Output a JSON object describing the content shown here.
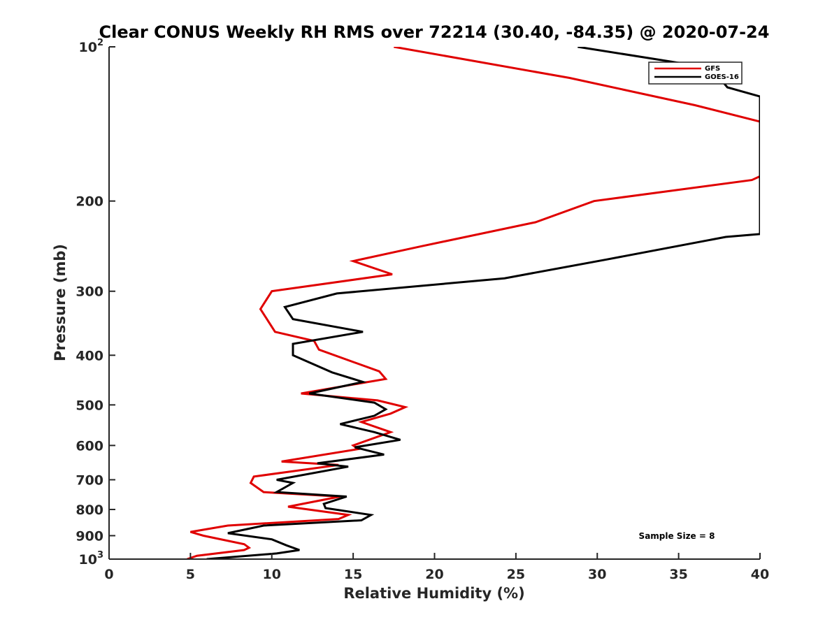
{
  "chart_data": {
    "type": "line",
    "title": "Clear CONUS Weekly RH RMS over 72214 (30.40, -84.35) @ 2020-07-24",
    "xlabel": "Relative Humidity (%)",
    "ylabel": "Pressure (mb)",
    "xlim": [
      0,
      40
    ],
    "ylim": [
      100,
      1000
    ],
    "yscale": "log",
    "y_reversed": true,
    "grid": false,
    "legend_position": "top-right",
    "xticks": [
      0,
      5,
      10,
      15,
      20,
      25,
      30,
      35,
      40
    ],
    "xtick_labels": [
      "0",
      "5",
      "10",
      "15",
      "20",
      "25",
      "30",
      "35",
      "40"
    ],
    "yticks": [
      100,
      200,
      300,
      400,
      500,
      600,
      700,
      800,
      900,
      1000
    ],
    "ytick_labels": [
      {
        "base": "10",
        "exp": "2"
      },
      {
        "base": "200",
        "exp": ""
      },
      {
        "base": "300",
        "exp": ""
      },
      {
        "base": "400",
        "exp": ""
      },
      {
        "base": "500",
        "exp": ""
      },
      {
        "base": "600",
        "exp": ""
      },
      {
        "base": "700",
        "exp": ""
      },
      {
        "base": "800",
        "exp": ""
      },
      {
        "base": "900",
        "exp": ""
      },
      {
        "base": "10",
        "exp": "3"
      }
    ],
    "annotation": "Sample Size = 8",
    "series": [
      {
        "name": "GFS",
        "color": "#e00000",
        "points": [
          [
            17.5,
            100
          ],
          [
            28.3,
            115
          ],
          [
            36.0,
            130
          ],
          [
            40.0,
            140
          ],
          [
            40.0,
            179
          ],
          [
            39.5,
            182
          ],
          [
            29.8,
            200
          ],
          [
            26.2,
            220
          ],
          [
            19.2,
            245
          ],
          [
            15.0,
            262
          ],
          [
            17.4,
            278
          ],
          [
            10.0,
            300
          ],
          [
            9.3,
            325
          ],
          [
            10.2,
            360
          ],
          [
            12.6,
            375
          ],
          [
            12.9,
            390
          ],
          [
            16.6,
            430
          ],
          [
            17.0,
            445
          ],
          [
            11.8,
            475
          ],
          [
            16.5,
            490
          ],
          [
            18.2,
            505
          ],
          [
            17.3,
            520
          ],
          [
            15.5,
            540
          ],
          [
            17.3,
            565
          ],
          [
            15.0,
            600
          ],
          [
            15.3,
            610
          ],
          [
            10.6,
            645
          ],
          [
            14.1,
            655
          ],
          [
            8.9,
            690
          ],
          [
            8.7,
            710
          ],
          [
            9.5,
            740
          ],
          [
            14.2,
            755
          ],
          [
            11.0,
            790
          ],
          [
            14.7,
            820
          ],
          [
            14.1,
            835
          ],
          [
            7.3,
            860
          ],
          [
            5.0,
            885
          ],
          [
            5.8,
            900
          ],
          [
            8.3,
            935
          ],
          [
            8.6,
            950
          ],
          [
            8.3,
            960
          ],
          [
            5.4,
            985
          ],
          [
            4.8,
            1000
          ]
        ]
      },
      {
        "name": "GOES-16",
        "color": "#000000",
        "points": [
          [
            28.8,
            100
          ],
          [
            37.0,
            110
          ],
          [
            38.0,
            120
          ],
          [
            40.0,
            125
          ],
          [
            40.0,
            232
          ],
          [
            37.9,
            235
          ],
          [
            30.6,
            260
          ],
          [
            24.3,
            283
          ],
          [
            14.0,
            303
          ],
          [
            10.8,
            322
          ],
          [
            11.3,
            340
          ],
          [
            15.6,
            360
          ],
          [
            11.3,
            380
          ],
          [
            11.3,
            400
          ],
          [
            13.7,
            432
          ],
          [
            15.6,
            451
          ],
          [
            12.3,
            475
          ],
          [
            16.3,
            495
          ],
          [
            17.0,
            510
          ],
          [
            16.3,
            525
          ],
          [
            14.2,
            545
          ],
          [
            16.3,
            565
          ],
          [
            17.9,
            585
          ],
          [
            15.1,
            605
          ],
          [
            16.9,
            625
          ],
          [
            12.8,
            650
          ],
          [
            14.7,
            660
          ],
          [
            10.3,
            700
          ],
          [
            11.3,
            710
          ],
          [
            10.3,
            740
          ],
          [
            14.6,
            755
          ],
          [
            13.2,
            780
          ],
          [
            13.3,
            795
          ],
          [
            16.1,
            820
          ],
          [
            15.5,
            840
          ],
          [
            9.5,
            860
          ],
          [
            7.3,
            890
          ],
          [
            10.0,
            915
          ],
          [
            10.9,
            940
          ],
          [
            11.7,
            960
          ],
          [
            10.3,
            975
          ],
          [
            6.0,
            1000
          ]
        ]
      }
    ]
  }
}
